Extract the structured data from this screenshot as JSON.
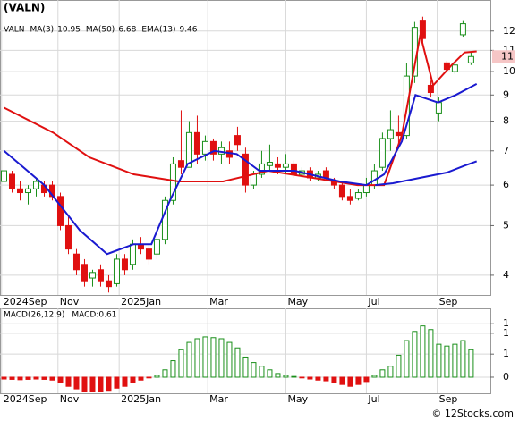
{
  "chart_data": [
    {
      "type": "candlestick",
      "title": "(VALN)",
      "ticker": "VALN",
      "log_scale": true,
      "grid": true,
      "up_color": "#1a8f1a",
      "down_color": "#e01010",
      "x": [
        0,
        1,
        2,
        3,
        4,
        5,
        6,
        7,
        8,
        9,
        10,
        11,
        12,
        13,
        14,
        15,
        16,
        17,
        18,
        19,
        20,
        21,
        22,
        23,
        24,
        25,
        26,
        27,
        28,
        29,
        30,
        31,
        32,
        33,
        34,
        35,
        36,
        37,
        38,
        39,
        40,
        41,
        42,
        43,
        44,
        45,
        46,
        47,
        48,
        49,
        50,
        51,
        52,
        53,
        54,
        55,
        56,
        57,
        58
      ],
      "open": [
        6.1,
        6.3,
        5.9,
        5.8,
        5.9,
        6.0,
        6.0,
        5.7,
        5.0,
        4.4,
        4.2,
        3.95,
        4.1,
        3.9,
        3.85,
        4.3,
        4.2,
        4.6,
        4.5,
        4.4,
        4.7,
        5.6,
        6.7,
        6.5,
        7.6,
        6.9,
        7.3,
        6.9,
        7.0,
        7.5,
        6.9,
        6.0,
        6.3,
        6.55,
        6.6,
        6.5,
        6.6,
        6.3,
        6.4,
        6.2,
        6.4,
        6.1,
        6.0,
        5.7,
        5.65,
        5.8,
        6.0,
        6.5,
        7.4,
        7.6,
        7.5,
        9.8,
        12.6,
        9.4,
        8.3,
        10.4,
        10.0,
        11.8,
        10.4
      ],
      "high": [
        6.6,
        6.4,
        6.1,
        6.0,
        6.2,
        6.1,
        6.1,
        5.8,
        5.2,
        4.5,
        4.3,
        4.1,
        4.2,
        4.0,
        4.4,
        4.4,
        4.7,
        4.75,
        4.6,
        4.8,
        5.7,
        6.8,
        8.4,
        8.0,
        8.2,
        7.5,
        7.4,
        7.3,
        7.3,
        7.8,
        7.1,
        6.4,
        7.0,
        7.2,
        6.8,
        6.9,
        6.7,
        6.5,
        6.5,
        6.4,
        6.5,
        6.2,
        6.1,
        5.9,
        5.9,
        6.2,
        6.6,
        7.6,
        8.4,
        8.2,
        10.4,
        12.5,
        12.8,
        9.6,
        8.9,
        10.5,
        10.4,
        12.6,
        10.9
      ],
      "low": [
        5.9,
        5.8,
        5.6,
        5.5,
        5.7,
        5.7,
        5.6,
        4.9,
        4.4,
        4.0,
        3.8,
        3.8,
        3.8,
        3.7,
        3.8,
        4.0,
        4.1,
        4.4,
        4.2,
        4.3,
        4.6,
        5.5,
        6.3,
        6.5,
        6.6,
        6.7,
        6.7,
        6.6,
        6.6,
        7.0,
        5.8,
        5.9,
        6.2,
        6.4,
        6.3,
        6.3,
        6.2,
        6.2,
        6.1,
        6.1,
        6.1,
        5.9,
        5.6,
        5.5,
        5.6,
        5.7,
        5.9,
        6.4,
        7.0,
        7.2,
        7.4,
        9.5,
        11.4,
        8.9,
        8.0,
        10.0,
        9.9,
        11.7,
        10.3
      ],
      "close": [
        6.4,
        5.9,
        5.8,
        5.9,
        6.1,
        5.8,
        5.7,
        5.0,
        4.5,
        4.1,
        3.9,
        4.05,
        3.9,
        3.8,
        4.3,
        4.1,
        4.6,
        4.5,
        4.3,
        4.7,
        5.6,
        6.6,
        6.5,
        7.6,
        6.9,
        7.3,
        6.9,
        7.1,
        6.8,
        7.2,
        6.0,
        6.3,
        6.6,
        6.65,
        6.5,
        6.6,
        6.3,
        6.4,
        6.2,
        6.3,
        6.2,
        6.0,
        5.7,
        5.6,
        5.8,
        6.0,
        6.4,
        7.4,
        7.7,
        7.5,
        9.8,
        12.2,
        11.6,
        9.1,
        8.7,
        10.1,
        10.3,
        12.4,
        10.7
      ],
      "last_price": 10.7,
      "last_price_label": "11",
      "series": [
        {
          "name": "MA(3)",
          "legend_value": 10.95,
          "color": "#e01010",
          "x": [
            0,
            6.1,
            10.6,
            16.1,
            21.7,
            27.2,
            32.8,
            38.3,
            43.9,
            47.2,
            49.4,
            51.7,
            53.3,
            55.6,
            57.2,
            58.7
          ],
          "values": [
            8.5,
            7.6,
            6.8,
            6.3,
            6.1,
            6.1,
            6.4,
            6.2,
            6.0,
            6.0,
            7.5,
            11.8,
            9.4,
            10.3,
            10.9,
            10.95
          ]
        },
        {
          "name": "MA(50)",
          "legend_value": 6.68,
          "color": "#1a1ad0",
          "x": [
            46.1,
            48.3,
            51.7,
            55,
            57.2,
            58.7
          ],
          "values": [
            6.0,
            6.05,
            6.2,
            6.35,
            6.55,
            6.68
          ]
        },
        {
          "name": "EMA(13)",
          "legend_value": 9.46,
          "color": "#1a1ad0",
          "x": [
            0,
            5,
            9.4,
            12.8,
            16.1,
            18.3,
            20.6,
            22.8,
            26.1,
            28.9,
            31.7,
            36.1,
            41.7,
            45,
            47.2,
            49.4,
            51.1,
            53.9,
            56.1,
            58.7
          ],
          "values": [
            7.0,
            6.0,
            4.9,
            4.4,
            4.6,
            4.6,
            5.6,
            6.6,
            7.0,
            6.9,
            6.4,
            6.4,
            6.1,
            6.0,
            6.3,
            7.3,
            9.0,
            8.7,
            9.0,
            9.46
          ]
        }
      ],
      "ylim": [
        3.66,
        13.8
      ],
      "yticks": [
        4,
        5,
        6,
        7,
        8,
        9,
        10,
        11,
        12
      ],
      "xlim": [
        -0.5,
        60.4
      ],
      "xticks": [
        {
          "value": -0.3,
          "label": "2024Sep"
        },
        {
          "value": 6.7,
          "label": "Nov"
        },
        {
          "value": 14.3,
          "label": "2025Jan"
        },
        {
          "value": 25.3,
          "label": "Mar"
        },
        {
          "value": 35.0,
          "label": "May"
        },
        {
          "value": 45.0,
          "label": "Jul"
        },
        {
          "value": 53.8,
          "label": "Sep"
        }
      ]
    },
    {
      "type": "bar",
      "legend": [
        "MACD(26,12,9)",
        "MACD:0.61"
      ],
      "grid": true,
      "up_color": "#1a8f1a",
      "down_color": "#e01010",
      "x": [
        0,
        1,
        2,
        3,
        4,
        5,
        6,
        7,
        8,
        9,
        10,
        11,
        12,
        13,
        14,
        15,
        16,
        17,
        18,
        19,
        20,
        21,
        22,
        23,
        24,
        25,
        26,
        27,
        28,
        29,
        30,
        31,
        32,
        33,
        34,
        35,
        36,
        37,
        38,
        39,
        40,
        41,
        42,
        43,
        44,
        45,
        46,
        47,
        48,
        49,
        50,
        51,
        52,
        53,
        54,
        55,
        56,
        57,
        58
      ],
      "values": [
        -0.05,
        -0.06,
        -0.07,
        -0.06,
        -0.05,
        -0.06,
        -0.08,
        -0.15,
        -0.25,
        -0.32,
        -0.38,
        -0.38,
        -0.38,
        -0.36,
        -0.3,
        -0.25,
        -0.15,
        -0.08,
        -0.02,
        0.05,
        0.2,
        0.45,
        0.75,
        0.95,
        1.05,
        1.1,
        1.08,
        1.05,
        0.95,
        0.8,
        0.55,
        0.4,
        0.3,
        0.2,
        0.1,
        0.05,
        0.02,
        -0.02,
        -0.05,
        -0.08,
        -0.1,
        -0.15,
        -0.2,
        -0.25,
        -0.2,
        -0.12,
        0.05,
        0.2,
        0.3,
        0.6,
        1.0,
        1.25,
        1.4,
        1.3,
        0.9,
        0.85,
        0.9,
        1.0,
        0.75
      ],
      "ylim": [
        -0.44,
        1.88
      ],
      "yticks": [
        {
          "value": 1.46,
          "label": "1"
        },
        {
          "value": 1.2,
          "label": "1"
        },
        {
          "value": 0.63,
          "label": "1"
        },
        0
      ],
      "xlim": [
        -0.5,
        60.4
      ],
      "xticks": [
        {
          "value": -0.3,
          "label": "2024Sep"
        },
        {
          "value": 6.7,
          "label": "Nov"
        },
        {
          "value": 14.3,
          "label": "2025Jan"
        },
        {
          "value": 25.3,
          "label": "Mar"
        },
        {
          "value": 35.0,
          "label": "May"
        },
        {
          "value": 45.0,
          "label": "Jul"
        },
        {
          "value": 53.8,
          "label": "Sep"
        }
      ]
    }
  ],
  "watermark": "© 12Stocks.com"
}
